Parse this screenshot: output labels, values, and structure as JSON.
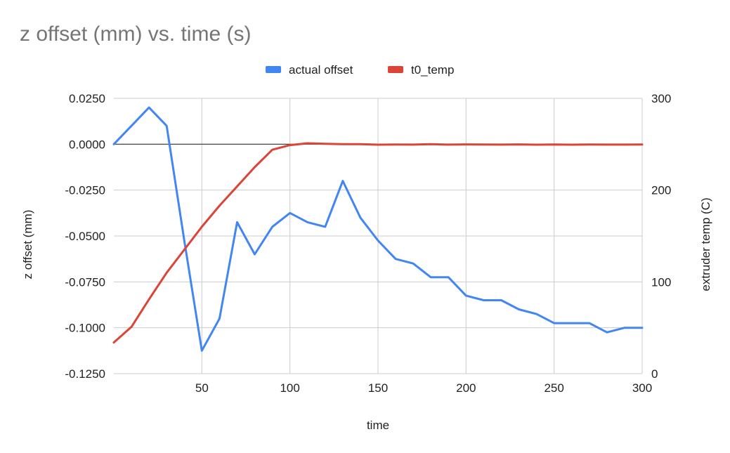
{
  "chart_data": {
    "type": "line",
    "title": "z offset (mm) vs. time (s)",
    "xlabel": "time",
    "ylabel": "z offset (mm)",
    "y2label": "extruder temp (C)",
    "xlim": [
      0,
      300
    ],
    "ylim": [
      -0.125,
      0.025
    ],
    "y2lim": [
      0,
      300
    ],
    "x_ticks": [
      "50",
      "100",
      "150",
      "200",
      "250",
      "300"
    ],
    "y_ticks": [
      "0.0250",
      "0.0000",
      "-0.0250",
      "-0.0500",
      "-0.0750",
      "-0.1000",
      "-0.1250"
    ],
    "y2_ticks": [
      "300",
      "200",
      "100",
      "0"
    ],
    "grid": true,
    "legend_position": "top",
    "x": [
      0,
      10,
      20,
      30,
      40,
      50,
      60,
      70,
      80,
      90,
      100,
      110,
      120,
      130,
      140,
      150,
      160,
      170,
      180,
      190,
      200,
      210,
      220,
      230,
      240,
      250,
      260,
      270,
      280,
      290,
      300
    ],
    "series": [
      {
        "name": "actual offset",
        "axis": "left",
        "color": "#4285F4",
        "values": [
          0.0,
          0.01,
          0.02,
          0.01,
          -0.0525,
          -0.1125,
          -0.095,
          -0.0425,
          -0.06,
          -0.045,
          -0.0375,
          -0.0425,
          -0.045,
          -0.02,
          -0.04,
          -0.0525,
          -0.0625,
          -0.065,
          -0.0725,
          -0.0725,
          -0.0825,
          -0.085,
          -0.085,
          -0.09,
          -0.0925,
          -0.0975,
          -0.0975,
          -0.0975,
          -0.1025,
          -0.1,
          -0.1
        ]
      },
      {
        "name": "t0_temp",
        "axis": "right",
        "color": "#DB4437",
        "values": [
          34,
          51,
          81,
          110,
          135,
          160,
          183,
          204,
          225,
          244,
          249,
          251,
          250.5,
          250,
          250,
          249.5,
          249.7,
          249.6,
          250,
          249.6,
          249.8,
          249.7,
          249.6,
          249.8,
          249.5,
          249.7,
          249.5,
          249.7,
          249.6,
          249.6,
          249.7
        ]
      }
    ]
  }
}
